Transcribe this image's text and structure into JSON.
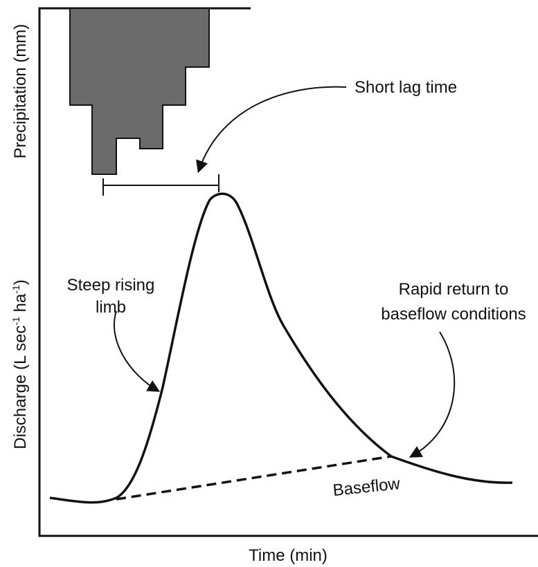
{
  "y_label_top": "Precipitation (mm)",
  "y_label_bottom": [
    "Discharge (L sec",
    "-1",
    " ha",
    "-1",
    ")"
  ],
  "x_label": "Time (min)",
  "annotations": {
    "lag": "Short lag time",
    "rising": [
      "Steep rising",
      "limb"
    ],
    "recession": [
      "Rapid return to",
      "baseflow conditions"
    ],
    "baseflow": "Baseflow"
  }
}
